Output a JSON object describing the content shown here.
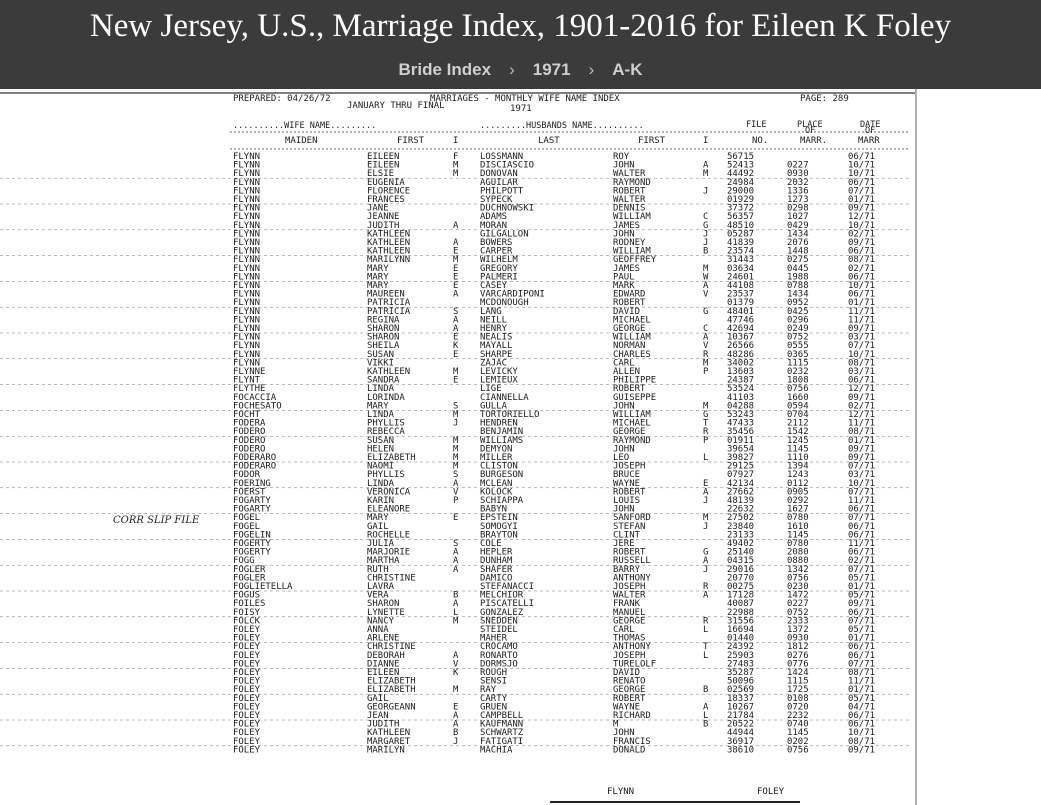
{
  "page": {
    "title": "New Jersey, U.S., Marriage Index, 1901-2016 for Eileen K Foley",
    "breadcrumb": [
      {
        "label": "Bride Index"
      },
      {
        "label": "1971"
      },
      {
        "label": "A-K"
      }
    ],
    "separator": "›"
  },
  "document": {
    "prepared": "PREPARED: 04/26/72",
    "report_title": "MARRIAGES - MONTHLY WIFE NAME INDEX",
    "period": "JANUARY THRU FINAL",
    "year": "1971",
    "page_label": "PAGE: 289",
    "group_wife": "..........WIFE NAME.........",
    "group_husband": ".........HUSBANDS NAME..........",
    "col_maiden": "MAIDEN",
    "col_first": "FIRST",
    "col_i": "I",
    "col_last": "LAST",
    "col_hfirst": "FIRST",
    "col_hi": "I",
    "col_file": "FILE",
    "col_file2": "NO.",
    "col_place": "PLACE",
    "col_place2": "OF",
    "col_place3": "MARR.",
    "col_date": "DATE",
    "col_date2": "OF",
    "col_date3": "MARR",
    "margin_note": "CORR SLIP FILE",
    "footer_left": "FLYNN",
    "footer_right": "FOLEY",
    "rows": [
      [
        "FLYNN",
        "EILEEN",
        "F",
        "LOSSMANN",
        "ROY",
        "",
        "56715",
        "",
        "06/71"
      ],
      [
        "FLYNN",
        "EILEEN",
        "M",
        "DISCIASCIO",
        "JOHN",
        "A",
        "52413",
        "0227",
        "10/71"
      ],
      [
        "FLYNN",
        "ELSIE",
        "M",
        "DONOVAN",
        "WALTER",
        "M",
        "44492",
        "0930",
        "10/71"
      ],
      [
        "FLYNN",
        "EUGENIA",
        "",
        "AGUILAR",
        "RAYMOND",
        "",
        "24984",
        "2032",
        "06/71"
      ],
      [
        "FLYNN",
        "FLORENCE",
        "",
        "PHILPOTT",
        "ROBERT",
        "J",
        "29000",
        "1336",
        "07/71"
      ],
      [
        "FLYNN",
        "FRANCES",
        "",
        "SYPECK",
        "WALTER",
        "",
        "01929",
        "1273",
        "01/71"
      ],
      [
        "FLYNN",
        "JANE",
        "",
        "DUCHNOWSKI",
        "DENNIS",
        "",
        "37372",
        "0298",
        "09/71"
      ],
      [
        "FLYNN",
        "JEANNE",
        "",
        "ADAMS",
        "WILLIAM",
        "C",
        "56357",
        "1027",
        "12/71"
      ],
      [
        "FLYNN",
        "JUDITH",
        "A",
        "MORAN",
        "JAMES",
        "G",
        "48510",
        "0429",
        "10/71"
      ],
      [
        "FLYNN",
        "KATHLEEN",
        "",
        "GILGALLON",
        "JOHN",
        "J",
        "05287",
        "1434",
        "02/71"
      ],
      [
        "FLYNN",
        "KATHLEEN",
        "A",
        "BOWERS",
        "RODNEY",
        "J",
        "41839",
        "2076",
        "09/71"
      ],
      [
        "FLYNN",
        "KATHLEEN",
        "E",
        "CARPER",
        "WILLIAM",
        "B",
        "23574",
        "1448",
        "06/71"
      ],
      [
        "FLYNN",
        "MARILYNN",
        "M",
        "WILHELM",
        "GEOFFREY",
        "",
        "31443",
        "0275",
        "08/71"
      ],
      [
        "FLYNN",
        "MARY",
        "E",
        "GREGORY",
        "JAMES",
        "M",
        "03634",
        "0445",
        "02/71"
      ],
      [
        "FLYNN",
        "MARY",
        "E",
        "PALMERI",
        "PAUL",
        "W",
        "24601",
        "1988",
        "06/71"
      ],
      [
        "FLYNN",
        "MARY",
        "E",
        "CASEY",
        "MARK",
        "A",
        "44108",
        "0788",
        "10/71"
      ],
      [
        "FLYNN",
        "MAUREEN",
        "A",
        "VARCARDIPONI",
        "EDWARD",
        "V",
        "23537",
        "1434",
        "06/71"
      ],
      [
        "FLYNN",
        "PATRICIA",
        "",
        "MCDONOUGH",
        "ROBERT",
        "",
        "01379",
        "0952",
        "01/71"
      ],
      [
        "FLYNN",
        "PATRICIA",
        "S",
        "LANG",
        "DAVID",
        "G",
        "48401",
        "0425",
        "11/71"
      ],
      [
        "FLYNN",
        "REGINA",
        "A",
        "NEILL",
        "MICHAEL",
        "",
        "47746",
        "0296",
        "11/71"
      ],
      [
        "FLYNN",
        "SHARON",
        "A",
        "HENRY",
        "GEORGE",
        "C",
        "42694",
        "0249",
        "09/71"
      ],
      [
        "FLYNN",
        "SHARON",
        "E",
        "NEALIS",
        "WILLIAM",
        "A",
        "10367",
        "0752",
        "03/71"
      ],
      [
        "FLYNN",
        "SHEILA",
        "K",
        "MAYALL",
        "NORMAN",
        "V",
        "26566",
        "0555",
        "07/71"
      ],
      [
        "FLYNN",
        "SUSAN",
        "E",
        "SHARPE",
        "CHARLES",
        "R",
        "48286",
        "0365",
        "10/71"
      ],
      [
        "FLYNN",
        "VIKKI",
        "",
        "ZAJAC",
        "CARL",
        "M",
        "34002",
        "1115",
        "08/71"
      ],
      [
        "FLYNNE",
        "KATHLEEN",
        "M",
        "LEVICKY",
        "ALLEN",
        "P",
        "13603",
        "0232",
        "03/71"
      ],
      [
        "FLYNT",
        "SANDRA",
        "E",
        "LEMIEUX",
        "PHILIPPE",
        "",
        "24387",
        "1808",
        "06/71"
      ],
      [
        "FLYTHE",
        "LINDA",
        "",
        "LIGE",
        "ROBERT",
        "",
        "53524",
        "0756",
        "12/71"
      ],
      [
        "FOCACCIA",
        "LORINDA",
        "",
        "CIANNELLA",
        "GUISEPPE",
        "",
        "41103",
        "1660",
        "09/71"
      ],
      [
        "FOCHESATO",
        "MARY",
        "S",
        "GULLA",
        "JOHN",
        "M",
        "04288",
        "0594",
        "02/71"
      ],
      [
        "FOCHT",
        "LINDA",
        "M",
        "TORTORIELLO",
        "WILLIAM",
        "G",
        "53243",
        "0704",
        "12/71"
      ],
      [
        "FODERA",
        "PHYLLIS",
        "J",
        "HENDREN",
        "MICHAEL",
        "T",
        "47433",
        "2112",
        "11/71"
      ],
      [
        "FODERO",
        "REBECCA",
        "",
        "BENJAMIN",
        "GEORGE",
        "R",
        "35456",
        "1542",
        "08/71"
      ],
      [
        "FODERO",
        "SUSAN",
        "M",
        "WILLIAMS",
        "RAYMOND",
        "P",
        "01911",
        "1245",
        "01/71"
      ],
      [
        "FODERO",
        "HELEN",
        "M",
        "DEMYON",
        "JOHN",
        "",
        "39654",
        "1145",
        "09/71"
      ],
      [
        "FODERARO",
        "ELIZABETH",
        "M",
        "MILLER",
        "LEO",
        "L",
        "39827",
        "1110",
        "09/71"
      ],
      [
        "FODERARO",
        "NAOMI",
        "M",
        "CLISTON",
        "JOSEPH",
        "",
        "29125",
        "1394",
        "07/71"
      ],
      [
        "FODOR",
        "PHYLLIS",
        "S",
        "BURGESON",
        "BRUCE",
        "",
        "07927",
        "1243",
        "03/71"
      ],
      [
        "FOERING",
        "LINDA",
        "A",
        "MCLEAN",
        "WAYNE",
        "E",
        "42134",
        "0112",
        "10/71"
      ],
      [
        "FOERST",
        "VERONICA",
        "V",
        "KOLOCK",
        "ROBERT",
        "A",
        "27662",
        "0905",
        "07/71"
      ],
      [
        "FOGARTY",
        "KARIN",
        "P",
        "SCHIAPPA",
        "LOUIS",
        "J",
        "48139",
        "0292",
        "11/71"
      ],
      [
        "FOGARTY",
        "ELEANORE",
        "",
        "BABYN",
        "JOHN",
        "",
        "22632",
        "1627",
        "06/71"
      ],
      [
        "FOGEL",
        "MARY",
        "E",
        "EPSTEIN",
        "SANFORD",
        "M",
        "27502",
        "0780",
        "07/71"
      ],
      [
        "FOGEL",
        "GAIL",
        "",
        "SOMOGYI",
        "STEFAN",
        "J",
        "23840",
        "1610",
        "06/71"
      ],
      [
        "FOGELIN",
        "ROCHELLE",
        "",
        "BRAYTON",
        "CLINT",
        "",
        "23133",
        "1145",
        "06/71"
      ],
      [
        "FOGERTY",
        "JULIA",
        "S",
        "COLE",
        "JERE",
        "",
        "49402",
        "0780",
        "11/71"
      ],
      [
        "FOGERTY",
        "MARJORIE",
        "A",
        "HEPLER",
        "ROBERT",
        "G",
        "25140",
        "2080",
        "06/71"
      ],
      [
        "FOGG",
        "MARTHA",
        "A",
        "DUNHAM",
        "RUSSELL",
        "A",
        "04315",
        "0880",
        "02/71"
      ],
      [
        "FOGLER",
        "RUTH",
        "A",
        "SHAFER",
        "BARRY",
        "J",
        "29016",
        "1342",
        "07/71"
      ],
      [
        "FOGLER",
        "CHRISTINE",
        "",
        "DAMICO",
        "ANTHONY",
        "",
        "20770",
        "0756",
        "05/71"
      ],
      [
        "FOGLIETELLA",
        "LAVRA",
        "",
        "STEFANACCI",
        "JOSEPH",
        "R",
        "00275",
        "0230",
        "01/71"
      ],
      [
        "FOGUS",
        "VERA",
        "B",
        "MELCHIOR",
        "WALTER",
        "A",
        "17128",
        "1472",
        "05/71"
      ],
      [
        "FOILES",
        "SHARON",
        "A",
        "PISCATELLI",
        "FRANK",
        "",
        "40087",
        "0227",
        "09/71"
      ],
      [
        "FOISY",
        "LYNETTE",
        "L",
        "GONZALEZ",
        "MANUEL",
        "",
        "22988",
        "0752",
        "06/71"
      ],
      [
        "FOLCK",
        "NANCY",
        "M",
        "SNEDDEN",
        "GEORGE",
        "R",
        "31556",
        "2333",
        "07/71"
      ],
      [
        "FOLEY",
        "ANNA",
        "",
        "STEIDEL",
        "CARL",
        "L",
        "16694",
        "1372",
        "05/71"
      ],
      [
        "FOLEY",
        "ARLENE",
        "",
        "MAHER",
        "THOMAS",
        "",
        "01440",
        "0930",
        "01/71"
      ],
      [
        "FOLEY",
        "CHRISTINE",
        "",
        "CROCAMO",
        "ANTHONY",
        "T",
        "24392",
        "1812",
        "06/71"
      ],
      [
        "FOLEY",
        "DEBORAH",
        "A",
        "RONARTO",
        "JOSEPH",
        "L",
        "25903",
        "0276",
        "06/71"
      ],
      [
        "FOLEY",
        "DIANNE",
        "V",
        "DORMSJO",
        "TURELOLF",
        "",
        "27483",
        "0776",
        "07/71"
      ],
      [
        "FOLEY",
        "EILEEN",
        "K",
        "ROUGH",
        "DAVID",
        "",
        "35287",
        "1424",
        "08/71"
      ],
      [
        "FOLEY",
        "ELIZABETH",
        "",
        "SENSI",
        "RENATO",
        "",
        "50096",
        "1115",
        "11/71"
      ],
      [
        "FOLEY",
        "ELIZABETH",
        "M",
        "RAY",
        "GEORGE",
        "B",
        "02569",
        "1725",
        "01/71"
      ],
      [
        "FOLEY",
        "GAIL",
        "",
        "CARTY",
        "ROBERT",
        "",
        "18337",
        "0108",
        "05/71"
      ],
      [
        "FOLEY",
        "GEORGEANN",
        "E",
        "GRUEN",
        "WAYNE",
        "A",
        "10267",
        "0720",
        "04/71"
      ],
      [
        "FOLEY",
        "JEAN",
        "A",
        "CAMPBELL",
        "RICHARD",
        "L",
        "21784",
        "2232",
        "06/71"
      ],
      [
        "FOLEY",
        "JUDITH",
        "A",
        "KAUFMANN",
        "M",
        "B",
        "20522",
        "0740",
        "06/71"
      ],
      [
        "FOLEY",
        "KATHLEEN",
        "B",
        "SCHWARTZ",
        "JOHN",
        "",
        "44944",
        "1145",
        "10/71"
      ],
      [
        "FOLEY",
        "MARGARET",
        "J",
        "FATIGATI",
        "FRANCIS",
        "",
        "36917",
        "0202",
        "08/71"
      ],
      [
        "FOLEY",
        "MARILYN",
        "",
        "MACHIA",
        "DONALD",
        "",
        "38610",
        "0756",
        "09/71"
      ]
    ]
  }
}
